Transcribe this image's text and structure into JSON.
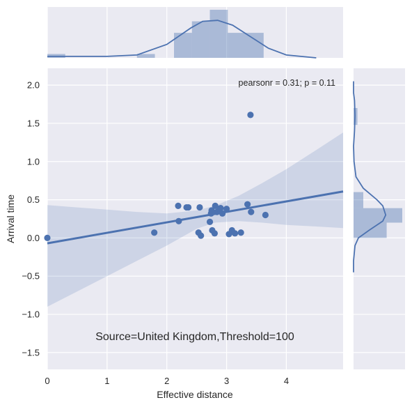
{
  "chart_data": {
    "type": "scatter",
    "subtype": "jointplot-regression",
    "xlabel": "Effective distance",
    "ylabel": "Arrival time",
    "xlim": [
      0,
      4.95
    ],
    "ylim": [
      -1.72,
      2.22
    ],
    "xticks": [
      "0",
      "1",
      "2",
      "3",
      "4"
    ],
    "yticks": [
      "2.0",
      "1.5",
      "1.0",
      "0.5",
      "0.0",
      "−0.5",
      "−1.0",
      "−1.5"
    ],
    "grid": true,
    "annotation": "pearsonr = 0.31; p = 0.11",
    "caption": "Source=United Kingdom,Threshold=100",
    "points": [
      {
        "x": 0.0,
        "y": 0.0
      },
      {
        "x": 1.79,
        "y": 0.07
      },
      {
        "x": 2.19,
        "y": 0.42
      },
      {
        "x": 2.2,
        "y": 0.22
      },
      {
        "x": 2.33,
        "y": 0.4
      },
      {
        "x": 2.36,
        "y": 0.4
      },
      {
        "x": 2.53,
        "y": 0.07
      },
      {
        "x": 2.55,
        "y": 0.4
      },
      {
        "x": 2.57,
        "y": 0.03
      },
      {
        "x": 2.72,
        "y": 0.21
      },
      {
        "x": 2.74,
        "y": 0.32
      },
      {
        "x": 2.75,
        "y": 0.36
      },
      {
        "x": 2.76,
        "y": 0.1
      },
      {
        "x": 2.8,
        "y": 0.06
      },
      {
        "x": 2.81,
        "y": 0.42
      },
      {
        "x": 2.84,
        "y": 0.34
      },
      {
        "x": 2.88,
        "y": 0.38
      },
      {
        "x": 2.9,
        "y": 0.39
      },
      {
        "x": 2.93,
        "y": 0.32
      },
      {
        "x": 3.0,
        "y": 0.38
      },
      {
        "x": 3.04,
        "y": 0.05
      },
      {
        "x": 3.09,
        "y": 0.1
      },
      {
        "x": 3.14,
        "y": 0.06
      },
      {
        "x": 3.24,
        "y": 0.07
      },
      {
        "x": 3.35,
        "y": 0.44
      },
      {
        "x": 3.4,
        "y": 1.61
      },
      {
        "x": 3.41,
        "y": 0.34
      },
      {
        "x": 3.65,
        "y": 0.3
      }
    ],
    "regression": {
      "intercept": -0.07,
      "slope": 0.137
    },
    "confidence_band": {
      "x": [
        0,
        0.5,
        1.0,
        1.5,
        2.0,
        2.5,
        2.8,
        3.2,
        3.6,
        4.0,
        4.5,
        4.95
      ],
      "lower": [
        -0.9,
        -0.7,
        -0.5,
        -0.3,
        -0.1,
        0.12,
        0.2,
        0.22,
        0.2,
        0.17,
        0.15,
        0.13
      ],
      "upper": [
        0.43,
        0.4,
        0.37,
        0.34,
        0.32,
        0.36,
        0.42,
        0.55,
        0.72,
        0.9,
        1.15,
        1.38
      ]
    },
    "x_marginal": {
      "bins": [
        {
          "x0": 0.0,
          "x1": 0.3,
          "h": 0.08
        },
        {
          "x0": 1.5,
          "x1": 1.8,
          "h": 0.08
        },
        {
          "x0": 2.12,
          "x1": 2.42,
          "h": 0.52
        },
        {
          "x0": 2.42,
          "x1": 2.72,
          "h": 0.76
        },
        {
          "x0": 2.72,
          "x1": 3.02,
          "h": 1.0
        },
        {
          "x0": 3.02,
          "x1": 3.32,
          "h": 0.52
        },
        {
          "x0": 3.32,
          "x1": 3.62,
          "h": 0.52
        }
      ],
      "kde": [
        [
          -0.1,
          0.03
        ],
        [
          0.3,
          0.03
        ],
        [
          1.0,
          0.03
        ],
        [
          1.5,
          0.06
        ],
        [
          2.0,
          0.28
        ],
        [
          2.4,
          0.62
        ],
        [
          2.6,
          0.76
        ],
        [
          2.85,
          0.78
        ],
        [
          3.1,
          0.68
        ],
        [
          3.4,
          0.44
        ],
        [
          3.7,
          0.2
        ],
        [
          4.0,
          0.06
        ],
        [
          4.5,
          0.0
        ]
      ]
    },
    "y_marginal": {
      "bins": [
        {
          "y0": 1.48,
          "y1": 1.7,
          "w": 0.08
        },
        {
          "y0": 0.39,
          "y1": 0.6,
          "w": 0.2
        },
        {
          "y0": 0.2,
          "y1": 0.39,
          "w": 1.0
        },
        {
          "y0": 0.0,
          "y1": 0.2,
          "w": 0.68
        }
      ],
      "kde": [
        [
          2.05,
          0.0
        ],
        [
          1.9,
          0.0
        ],
        [
          1.8,
          0.02
        ],
        [
          1.6,
          0.03
        ],
        [
          1.4,
          0.02
        ],
        [
          1.2,
          0.0
        ],
        [
          1.0,
          0.01
        ],
        [
          0.8,
          0.05
        ],
        [
          0.65,
          0.2
        ],
        [
          0.5,
          0.48
        ],
        [
          0.42,
          0.6
        ],
        [
          0.3,
          0.66
        ],
        [
          0.22,
          0.6
        ],
        [
          0.1,
          0.32
        ],
        [
          0.0,
          0.1
        ],
        [
          -0.1,
          0.03
        ],
        [
          -0.3,
          0.0
        ],
        [
          -0.45,
          0.0
        ]
      ]
    }
  }
}
